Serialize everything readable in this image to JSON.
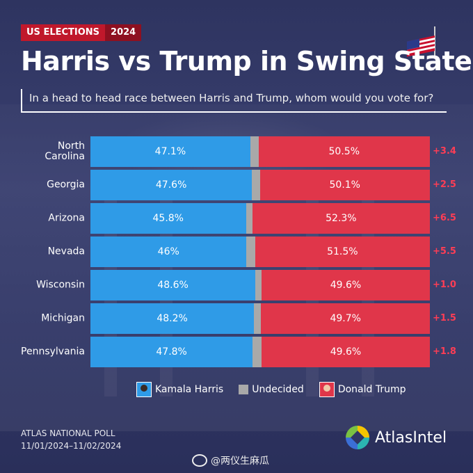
{
  "header": {
    "tag_left": "US ELECTIONS",
    "tag_right": "2024",
    "title": "Harris vs Trump in Swing States",
    "subtitle": "In a head to head race between Harris and Trump, whom would you vote for?"
  },
  "chart_data": {
    "type": "bar",
    "orientation": "horizontal-stacked",
    "categories": [
      "North Carolina",
      "Georgia",
      "Arizona",
      "Nevada",
      "Wisconsin",
      "Michigan",
      "Pennsylvania"
    ],
    "category_labels": [
      [
        "North",
        "Carolina"
      ],
      [
        "Georgia"
      ],
      [
        "Arizona"
      ],
      [
        "Nevada"
      ],
      [
        "Wisconsin"
      ],
      [
        "Michigan"
      ],
      [
        "Pennsylvania"
      ]
    ],
    "series": [
      {
        "name": "Kamala Harris",
        "values": [
          47.1,
          47.6,
          45.8,
          46,
          48.6,
          48.2,
          47.8
        ],
        "labels": [
          "47.1%",
          "47.6%",
          "45.8%",
          "46%",
          "48.6%",
          "48.2%",
          "47.8%"
        ],
        "color": "#2f9be7"
      },
      {
        "name": "Undecided",
        "values": [
          2.4,
          2.3,
          1.9,
          2.5,
          1.8,
          2.1,
          2.6
        ],
        "color": "#a9a9a9"
      },
      {
        "name": "Donald Trump",
        "values": [
          50.5,
          50.1,
          52.3,
          51.5,
          49.6,
          49.7,
          49.6
        ],
        "labels": [
          "50.5%",
          "50.1%",
          "52.3%",
          "51.5%",
          "49.6%",
          "49.7%",
          "49.6%"
        ],
        "color": "#e0364a"
      }
    ],
    "margins": [
      "+3.4",
      "+2.5",
      "+6.5",
      "+5.5",
      "+1.0",
      "+1.5",
      "+1.8"
    ],
    "margin_color": "#ff3d55",
    "xlim": [
      0,
      100
    ],
    "legend": [
      {
        "label": "Kamala Harris",
        "icon": "harris-portrait-icon"
      },
      {
        "label": "Undecided",
        "icon": "gray-square-icon"
      },
      {
        "label": "Donald Trump",
        "icon": "trump-portrait-icon"
      }
    ],
    "legend_position": "bottom"
  },
  "footer": {
    "poll_name": "ATLAS NATIONAL POLL",
    "poll_dates": "11/01/2024–11/02/2024",
    "brand": "AtlasIntel",
    "watermark": "@两仪生麻瓜"
  }
}
